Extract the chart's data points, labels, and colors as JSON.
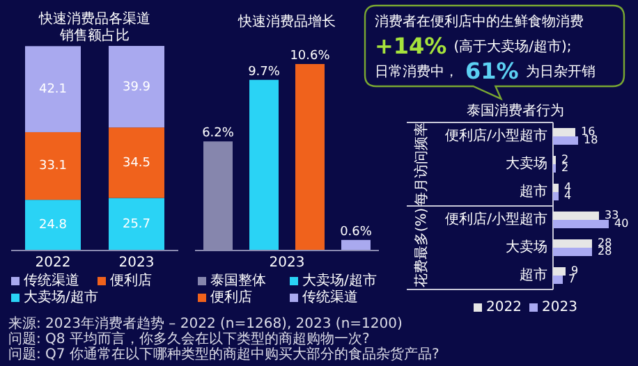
{
  "chart_data": [
    {
      "type": "bar",
      "title": "快速消费品各渠道销售额占比",
      "categories": [
        "2022",
        "2023"
      ],
      "stacked": true,
      "data_labels": true,
      "legend": "bottom",
      "series": [
        {
          "name": "大卖场/超市",
          "color": "#2ad3f5",
          "values": [
            24.8,
            25.7
          ]
        },
        {
          "name": "便利店",
          "color": "#f0621c",
          "values": [
            33.1,
            34.5
          ]
        },
        {
          "name": "传统渠道",
          "color": "#a9a9ef",
          "values": [
            42.1,
            39.9
          ]
        }
      ],
      "annotations": [
        "来源: 2023年消费者趋势 – 2022 (n=1268), 2023 (n=1200)",
        "问题: Q8 平均而言，你多久会在以下类型的商超购物一次?",
        "问题: Q7 你通常在以下哪种类型的商超中购买大部分的食品杂货产品?"
      ]
    },
    {
      "type": "bar",
      "title": "快速消费品增长",
      "xlabel": "2023",
      "categories": [
        null,
        null,
        null,
        null
      ],
      "values": [
        6.2,
        9.7,
        10.6,
        0.6
      ],
      "colors": [
        "#8686ad",
        "#2ad3f5",
        "#f0621c",
        "#a9a9ef"
      ],
      "value_labels": [
        "6.2%",
        "9.7%",
        "10.6%",
        "0.6%"
      ],
      "annotations": [
        "泰国整体",
        "大卖场/超市",
        "便利店",
        "传统渠道"
      ]
    },
    {
      "type": "other",
      "annotations": [
        "消费者在便利店中的生鲜食物消费",
        "+14%",
        "(高于大卖场/超市);",
        "日常消费中，",
        "61%",
        "为日杂开销"
      ]
    },
    {
      "type": "bar",
      "orientation": "horizontal",
      "title": "泰国消费者行为",
      "categories": [
        "便利店/小型超市",
        "大卖场",
        "超市",
        "便利店/小型超市",
        "大卖场",
        "超市"
      ],
      "data_labels": true,
      "legend": "bottom",
      "series": [
        {
          "name": "2022",
          "color": "#e6e6e6",
          "values": [
            16,
            2,
            4,
            33,
            28,
            9
          ]
        },
        {
          "name": "2023",
          "color": "#aaaaf2",
          "values": [
            18,
            2,
            4,
            40,
            28,
            7
          ]
        }
      ],
      "annotations": [
        "每月访问频率",
        "花费最多(%)"
      ]
    }
  ]
}
